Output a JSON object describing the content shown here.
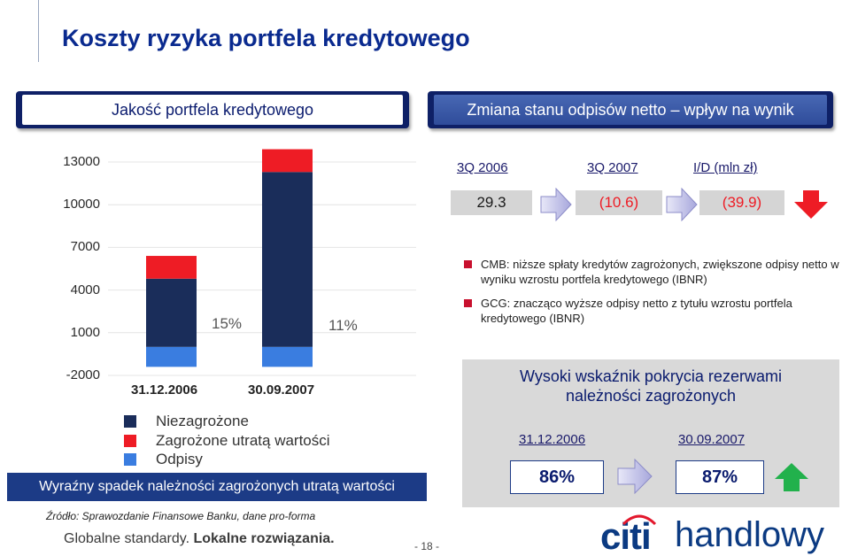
{
  "page": {
    "title": "Koszty ryzyka portfela kredytowego",
    "left_header": "Jakość portfela kredytowego",
    "right_header": "Zmiana stanu odpisów netto – wpływ na wynik",
    "left_bottom_banner": "Wyraźny spadek należności zagrożonych utratą wartości",
    "source_note": "Źródło: Sprawozdanie Finansowe Banku, dane pro-forma",
    "slogan_regular": "Globalne standardy.",
    "slogan_bold": "Lokalne rozwiązania.",
    "page_number": "- 18 -",
    "logo_citi": "citi",
    "logo_handlowy": "handlowy"
  },
  "chart_data": {
    "type": "bar",
    "stacked": true,
    "categories": [
      "31.12.2006",
      "30.09.2007"
    ],
    "y_ticks": [
      "13000",
      "10000",
      "7000",
      "4000",
      "1000",
      "-2000"
    ],
    "ylim": [
      -2000,
      13000
    ],
    "series": [
      {
        "name": "Niezagrożone",
        "color": "#1a2d5a",
        "values": [
          4800,
          12300
        ]
      },
      {
        "name": "Zagrożone utratą wartości",
        "color": "#ee1c25",
        "values": [
          1600,
          1600
        ]
      },
      {
        "name": "Odpisy",
        "color": "#3a7de0",
        "values": [
          -1400,
          -1400
        ]
      }
    ],
    "annotations": [
      "15%",
      "11%"
    ],
    "grid": true,
    "legend_position": "bottom-left"
  },
  "impact": {
    "columns": [
      "3Q 2006",
      "3Q 2007",
      "I/D (mln zł)"
    ],
    "values": [
      "29.3",
      "(10.6)",
      "(39.9)"
    ],
    "trend_icon": "red-down-arrow-icon",
    "bullets": [
      "CMB: niższe spłaty kredytów zagrożonych, zwiększone odpisy netto w wyniku wzrostu portfela kredytowego (IBNR)",
      "GCG: znacząco wyższe odpisy netto z tytułu wzrostu portfela kredytowego (IBNR)"
    ]
  },
  "coverage": {
    "title_line1": "Wysoki wskaźnik pokrycia rezerwami",
    "title_line2": "należności zagrożonych",
    "dates": [
      "31.12.2006",
      "30.09.2007"
    ],
    "values": [
      "86%",
      "87%"
    ],
    "trend_icon": "green-up-arrow-icon"
  },
  "colors": {
    "title": "#0a2a8f",
    "navy": "#0e2066",
    "red": "#ee1c25",
    "green": "#22b14c"
  }
}
